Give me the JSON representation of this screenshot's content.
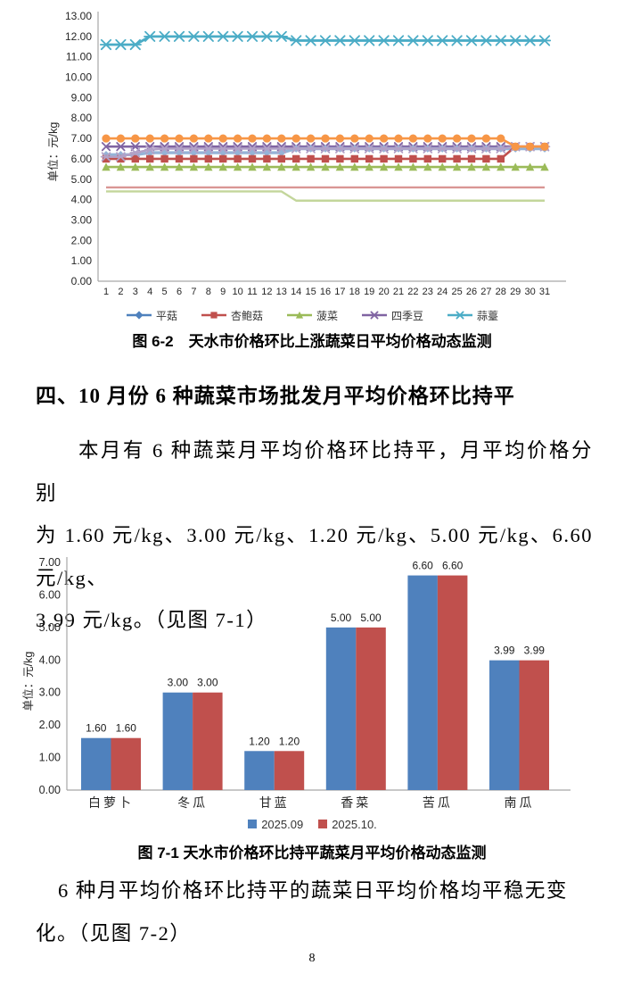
{
  "page": {
    "number": "8"
  },
  "figure62": {
    "caption": "图 6-2　天水市价格环比上涨蔬菜日平均价格动态监测"
  },
  "section": {
    "heading": "四、10 月份 6 种蔬菜市场批发月平均价格环比持平",
    "para1": {
      "0": "本月有 6 种蔬菜月平均价格环比持平，月平均价格分别",
      "1": "为 1.60 元/kg、3.00 元/kg、1.20 元/kg、5.00 元/kg、6.60 元/kg、",
      "2": "3.99 元/kg。（见图 7-1）"
    },
    "para2": {
      "0": "6 种月平均价格环比持平的蔬菜日平均价格均平稳无变",
      "1": "化。（见图 7-2）"
    }
  },
  "figure71": {
    "caption": "图 7-1 天水市价格环比持平蔬菜月平均价格动态监测"
  },
  "chart_data": [
    {
      "type": "line",
      "title": "天水市价格环比上涨蔬菜日平均价格动态监测",
      "ylabel": "单位：元/kg",
      "ylim": [
        0,
        13
      ],
      "ytick_step": 1,
      "grid": false,
      "legend_position": "bottom",
      "x": [
        1,
        2,
        3,
        4,
        5,
        6,
        7,
        8,
        9,
        10,
        11,
        12,
        13,
        14,
        15,
        16,
        17,
        18,
        19,
        20,
        21,
        22,
        23,
        24,
        25,
        26,
        27,
        28,
        29,
        30,
        31
      ],
      "legend": [
        {
          "label": "平菇",
          "color": "#4F81BD",
          "marker": "diamond"
        },
        {
          "label": "杏鲍菇",
          "color": "#C0504D",
          "marker": "square"
        },
        {
          "label": "菠菜",
          "color": "#9BBB59",
          "marker": "triangle"
        },
        {
          "label": "四季豆",
          "color": "#8064A2",
          "marker": "x"
        },
        {
          "label": "蒜薹",
          "color": "#4BACC6",
          "marker": "star"
        }
      ],
      "series": [
        {
          "name": "菠菜",
          "color": "#9BBB59",
          "marker": "triangle",
          "width": 2.6,
          "msize": 4.2,
          "values": [
            5.6,
            5.6,
            5.6,
            5.6,
            5.6,
            5.6,
            5.6,
            5.6,
            5.6,
            5.6,
            5.6,
            5.6,
            5.6,
            5.6,
            5.6,
            5.6,
            5.6,
            5.6,
            5.6,
            5.6,
            5.6,
            5.6,
            5.6,
            5.6,
            5.6,
            5.6,
            5.6,
            5.6,
            5.6,
            5.6,
            5.6
          ]
        },
        {
          "name": "四季豆",
          "color": "#8064A2",
          "marker": "x",
          "width": 2.6,
          "msize": 4.2,
          "values": [
            6.6,
            6.6,
            6.6,
            6.6,
            6.6,
            6.6,
            6.6,
            6.6,
            6.6,
            6.6,
            6.6,
            6.6,
            6.6,
            6.6,
            6.6,
            6.6,
            6.6,
            6.6,
            6.6,
            6.6,
            6.6,
            6.6,
            6.6,
            6.6,
            6.6,
            6.6,
            6.6,
            6.6,
            6.6,
            6.6,
            6.6
          ]
        },
        {
          "name": "平菇",
          "color": "#95B3D7",
          "marker": "diamond",
          "width": 3.4,
          "msize": 3.4,
          "values": [
            6.2,
            6.2,
            6.2,
            6.3,
            6.3,
            6.3,
            6.3,
            6.3,
            6.3,
            6.3,
            6.3,
            6.3,
            6.3,
            6.5,
            6.5,
            6.5,
            6.5,
            6.5,
            6.5,
            6.5,
            6.5,
            6.5,
            6.5,
            6.5,
            6.5,
            6.5,
            6.5,
            6.5,
            6.5,
            6.5,
            6.5
          ]
        },
        {
          "name": "杏鲍菇",
          "color": "#C0504D",
          "marker": "square",
          "width": 2.6,
          "msize": 4.2,
          "values": [
            6.0,
            6.0,
            6.0,
            6.0,
            6.0,
            6.0,
            6.0,
            6.0,
            6.0,
            6.0,
            6.0,
            6.0,
            6.0,
            6.0,
            6.0,
            6.0,
            6.0,
            6.0,
            6.0,
            6.0,
            6.0,
            6.0,
            6.0,
            6.0,
            6.0,
            6.0,
            6.0,
            6.0,
            6.6,
            6.6,
            6.6
          ]
        },
        {
          "name": "",
          "color": "#B2A1C7",
          "marker": "star",
          "width": 2.4,
          "msize": 4.4,
          "values": [
            6.1,
            6.1,
            6.3,
            6.45,
            6.5,
            6.5,
            6.5,
            6.5,
            6.5,
            6.5,
            6.5,
            6.5,
            6.5,
            6.5,
            6.5,
            6.5,
            6.5,
            6.5,
            6.5,
            6.5,
            6.5,
            6.5,
            6.5,
            6.5,
            6.5,
            6.5,
            6.5,
            6.5,
            6.6,
            6.6,
            6.6
          ]
        },
        {
          "name": "",
          "color": "#F79646",
          "marker": "circle",
          "width": 2.6,
          "msize": 4.6,
          "values": [
            7.0,
            7.0,
            7.0,
            7.0,
            7.0,
            7.0,
            7.0,
            7.0,
            7.0,
            7.0,
            7.0,
            7.0,
            7.0,
            7.0,
            7.0,
            7.0,
            7.0,
            7.0,
            7.0,
            7.0,
            7.0,
            7.0,
            7.0,
            7.0,
            7.0,
            7.0,
            7.0,
            7.0,
            6.6,
            6.6,
            6.6
          ]
        },
        {
          "name": "蒜薹",
          "color": "#4BACC6",
          "marker": "star",
          "width": 2.8,
          "msize": 5.2,
          "values": [
            11.6,
            11.6,
            11.6,
            12.0,
            12.0,
            12.0,
            12.0,
            12.0,
            12.0,
            12.0,
            12.0,
            12.0,
            12.0,
            11.8,
            11.8,
            11.8,
            11.8,
            11.8,
            11.8,
            11.8,
            11.8,
            11.8,
            11.8,
            11.8,
            11.8,
            11.8,
            11.8,
            11.8,
            11.8,
            11.8,
            11.8
          ]
        },
        {
          "name": "",
          "color": "#D99694",
          "marker": "none",
          "width": 2.4,
          "msize": 0,
          "values": [
            4.6,
            4.6,
            4.6,
            4.6,
            4.6,
            4.6,
            4.6,
            4.6,
            4.6,
            4.6,
            4.6,
            4.6,
            4.6,
            4.6,
            4.6,
            4.6,
            4.6,
            4.6,
            4.6,
            4.6,
            4.6,
            4.6,
            4.6,
            4.6,
            4.6,
            4.6,
            4.6,
            4.6,
            4.6,
            4.6,
            4.6
          ]
        },
        {
          "name": "",
          "color": "#C3D69B",
          "marker": "none",
          "width": 2.4,
          "msize": 0,
          "values": [
            4.4,
            4.4,
            4.4,
            4.4,
            4.4,
            4.4,
            4.4,
            4.4,
            4.4,
            4.4,
            4.4,
            4.4,
            4.4,
            3.95,
            3.95,
            3.95,
            3.95,
            3.95,
            3.95,
            3.95,
            3.95,
            3.95,
            3.95,
            3.95,
            3.95,
            3.95,
            3.95,
            3.95,
            3.95,
            3.95,
            3.95
          ]
        }
      ]
    },
    {
      "type": "bar",
      "title": "天水市价格环比持平蔬菜月平均价格动态监测",
      "ylabel": "单位：元/kg",
      "ylim": [
        0,
        7
      ],
      "ytick_step": 1,
      "grid": false,
      "legend_position": "bottom",
      "categories": [
        "白萝卜",
        "冬瓜",
        "甘蓝",
        "香菜",
        "苦瓜",
        "南瓜"
      ],
      "series": [
        {
          "name": "2025.09",
          "color": "#4F81BD",
          "values": [
            1.6,
            3.0,
            1.2,
            5.0,
            6.6,
            3.99
          ]
        },
        {
          "name": "2025.10.",
          "color": "#C0504D",
          "values": [
            1.6,
            3.0,
            1.2,
            5.0,
            6.6,
            3.99
          ]
        }
      ],
      "data_labels": [
        "1.60",
        "3.00",
        "1.20",
        "5.00",
        "6.60",
        "3.99"
      ]
    }
  ]
}
